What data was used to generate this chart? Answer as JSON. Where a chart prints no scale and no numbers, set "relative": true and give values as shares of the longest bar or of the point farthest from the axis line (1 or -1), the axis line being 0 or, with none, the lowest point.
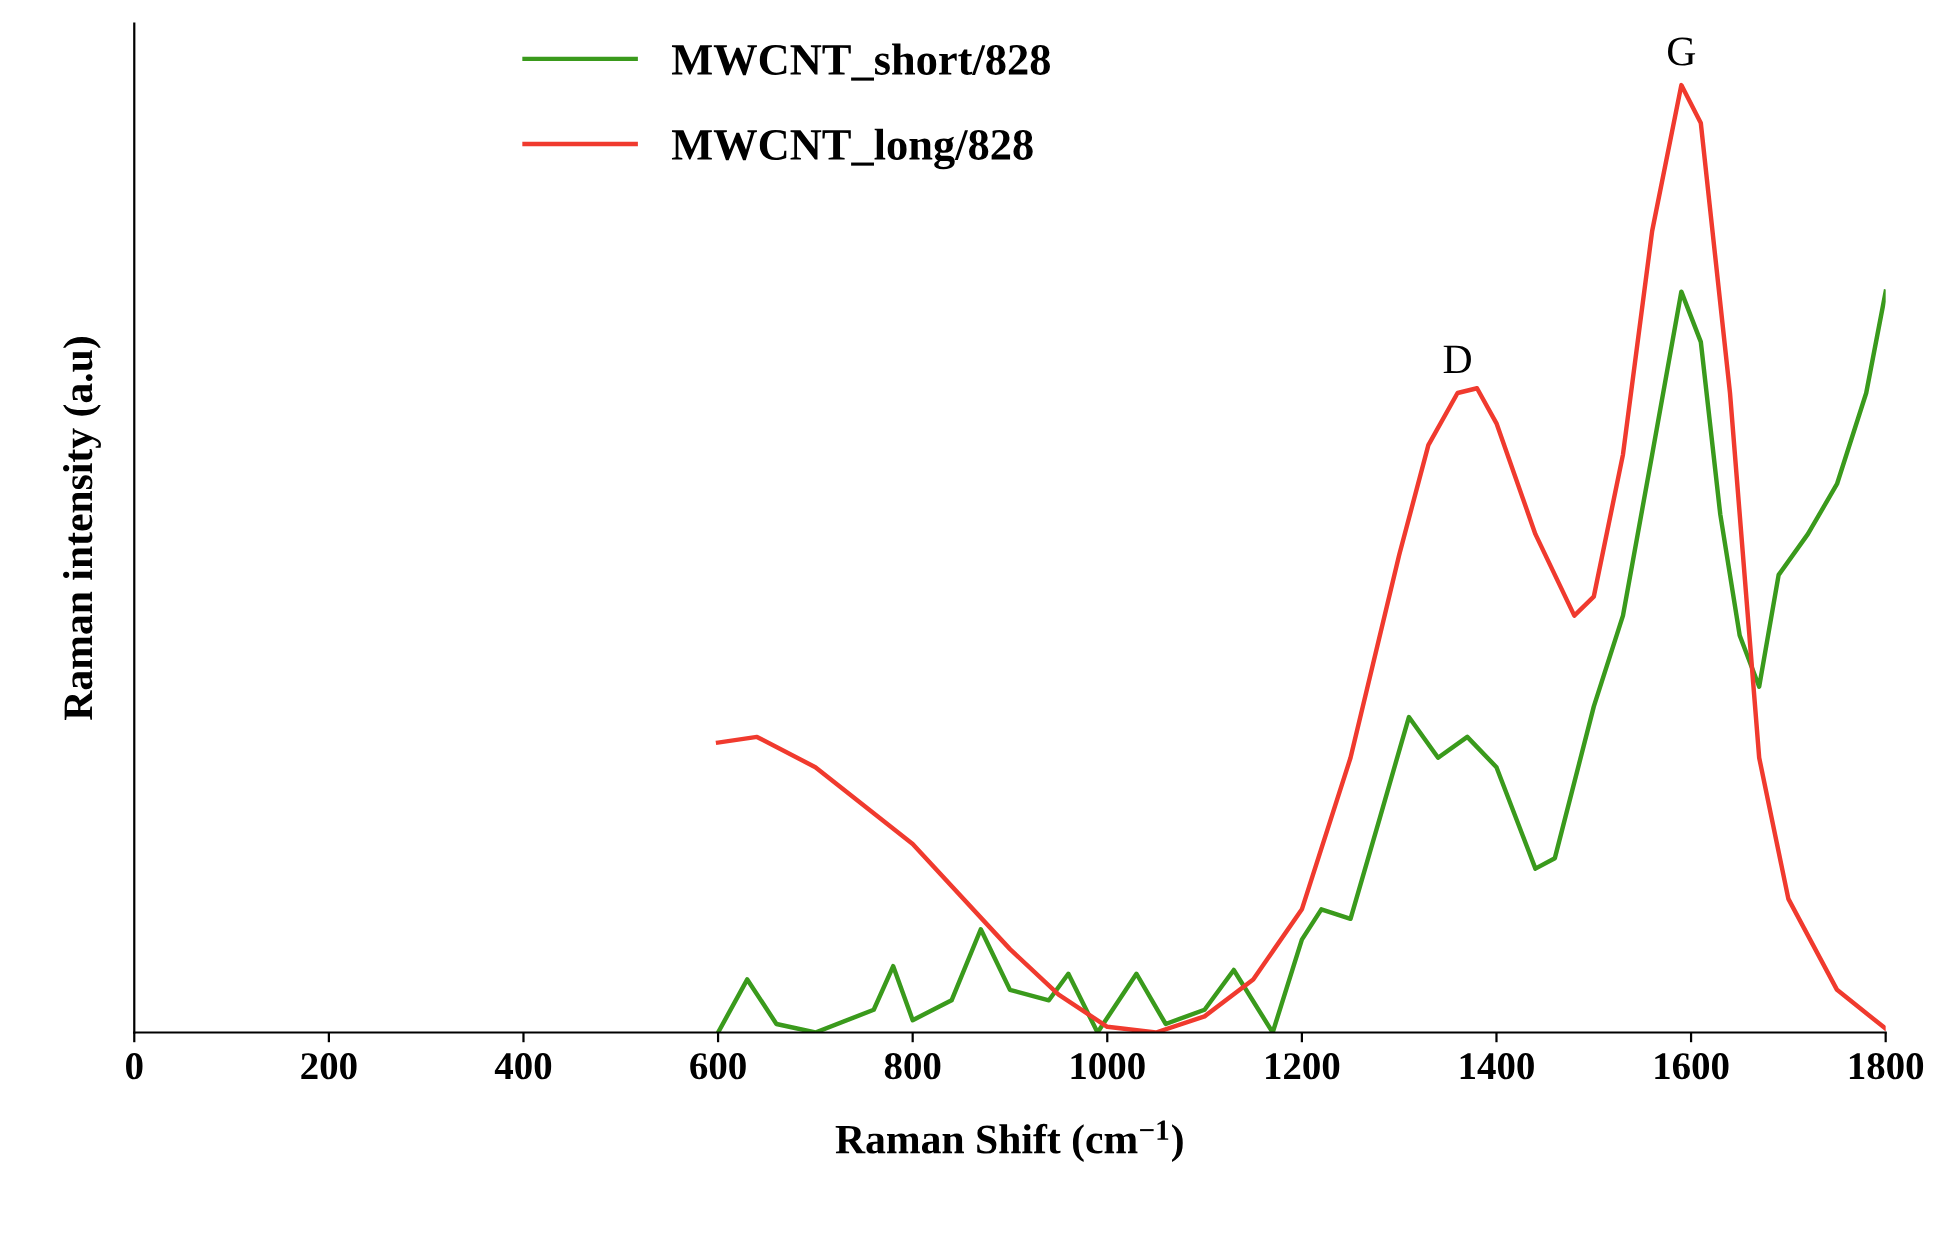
{
  "chart_data": {
    "type": "line",
    "relative": true,
    "xlabel": "Raman Shift (cm$^{−1}$)",
    "ylabel": "Raman intensity (a.u)",
    "xlim": [
      0,
      1800
    ],
    "xticks": [
      0,
      200,
      400,
      600,
      800,
      1000,
      1200,
      1400,
      1600,
      1800
    ],
    "grid": false,
    "legend": "top left",
    "marker": "none",
    "line_style": "solid",
    "series": [
      {
        "name": "MWCNT_short/828",
        "color": "#3a9a1c",
        "x": [
          600,
          630,
          660,
          700,
          760,
          780,
          800,
          840,
          870,
          900,
          940,
          960,
          990,
          1030,
          1060,
          1100,
          1130,
          1170,
          1200,
          1220,
          1250,
          1280,
          1310,
          1340,
          1370,
          1400,
          1440,
          1460,
          1500,
          1530,
          1560,
          1590,
          1610,
          1630,
          1650,
          1670,
          1690,
          1720,
          1750,
          1780,
          1800
        ],
        "values": [
          0,
          0.056,
          0.009,
          0,
          0.024,
          0.07,
          0.013,
          0.034,
          0.109,
          0.045,
          0.034,
          0.062,
          0,
          0.062,
          0.009,
          0.024,
          0.066,
          0,
          0.098,
          0.13,
          0.12,
          0.226,
          0.333,
          0.29,
          0.312,
          0.28,
          0.173,
          0.184,
          0.344,
          0.44,
          0.61,
          0.782,
          0.729,
          0.547,
          0.419,
          0.365,
          0.483,
          0.526,
          0.579,
          0.675,
          0.782
        ]
      },
      {
        "name": "MWCNT_long/828",
        "color": "#f03a2e",
        "x": [
          600,
          640,
          700,
          800,
          900,
          950,
          1000,
          1050,
          1100,
          1150,
          1200,
          1250,
          1300,
          1330,
          1360,
          1380,
          1400,
          1440,
          1480,
          1500,
          1530,
          1560,
          1590,
          1610,
          1640,
          1670,
          1700,
          1750,
          1800
        ],
        "values": [
          0.306,
          0.312,
          0.28,
          0.199,
          0.088,
          0.04,
          0.006,
          0,
          0.017,
          0.056,
          0.13,
          0.29,
          0.504,
          0.62,
          0.675,
          0.68,
          0.643,
          0.526,
          0.44,
          0.46,
          0.61,
          0.846,
          1,
          0.96,
          0.675,
          0.29,
          0.141,
          0.045,
          0.004
        ]
      }
    ],
    "annotations": [
      {
        "text": "D",
        "x": 1360,
        "y": 0.675
      },
      {
        "text": "G",
        "x": 1590,
        "y": 1
      }
    ]
  }
}
